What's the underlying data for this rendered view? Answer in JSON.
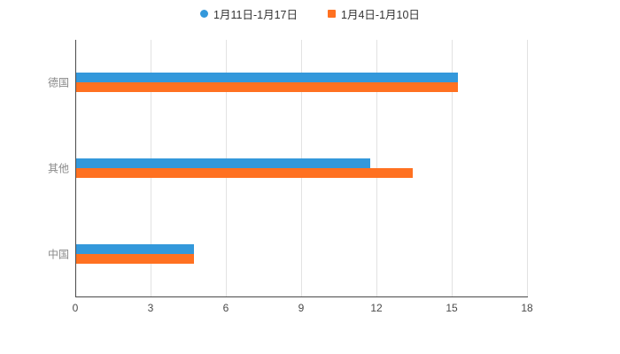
{
  "legend": {
    "series1_label": "1月11日-1月17日",
    "series2_label": "1月4日-1月10日"
  },
  "colors": {
    "series1": "#3398DB",
    "series2": "#FF7121",
    "grid": "#e2e2e2",
    "axis": "#4a4a4a"
  },
  "chart_data": {
    "type": "bar",
    "orientation": "horizontal",
    "title": "",
    "xlabel": "",
    "ylabel": "",
    "categories": [
      "德国",
      "其他",
      "中国"
    ],
    "series": [
      {
        "name": "1月11日-1月17日",
        "color": "#3398DB",
        "marker": "circle",
        "values": [
          15.2,
          11.7,
          4.7
        ]
      },
      {
        "name": "1月4日-1月10日",
        "color": "#FF7121",
        "marker": "square",
        "values": [
          15.2,
          13.4,
          4.7
        ]
      }
    ],
    "xlim": [
      0,
      18
    ],
    "xticks": [
      0,
      3,
      6,
      9,
      12,
      15,
      18
    ],
    "grid": true,
    "legend_position": "top"
  }
}
